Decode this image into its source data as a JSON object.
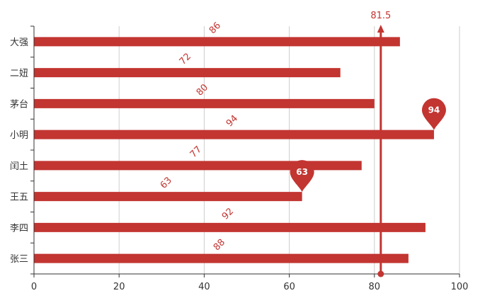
{
  "chart_data": {
    "type": "bar",
    "orientation": "horizontal",
    "categories": [
      "张三",
      "李四",
      "王五",
      "闰土",
      "小明",
      "茅台",
      "二妞",
      "大强"
    ],
    "values": [
      88,
      92,
      63,
      77,
      94,
      80,
      72,
      86
    ],
    "xlim": [
      0,
      100
    ],
    "x_ticks": [
      0,
      20,
      40,
      60,
      80,
      100
    ],
    "grid": "vertical",
    "colors": {
      "bar": "#c23531",
      "axis": "#333333",
      "grid": "#cccccc"
    },
    "data_labels": {
      "rotated": true,
      "color": "#c23531"
    },
    "mark_points": [
      {
        "category": "小明",
        "value": 94,
        "label": "94",
        "kind": "max"
      },
      {
        "category": "王五",
        "value": 63,
        "label": "63",
        "kind": "min"
      }
    ],
    "mark_line": {
      "value": 81.5,
      "label": "81.5",
      "kind": "average"
    }
  }
}
